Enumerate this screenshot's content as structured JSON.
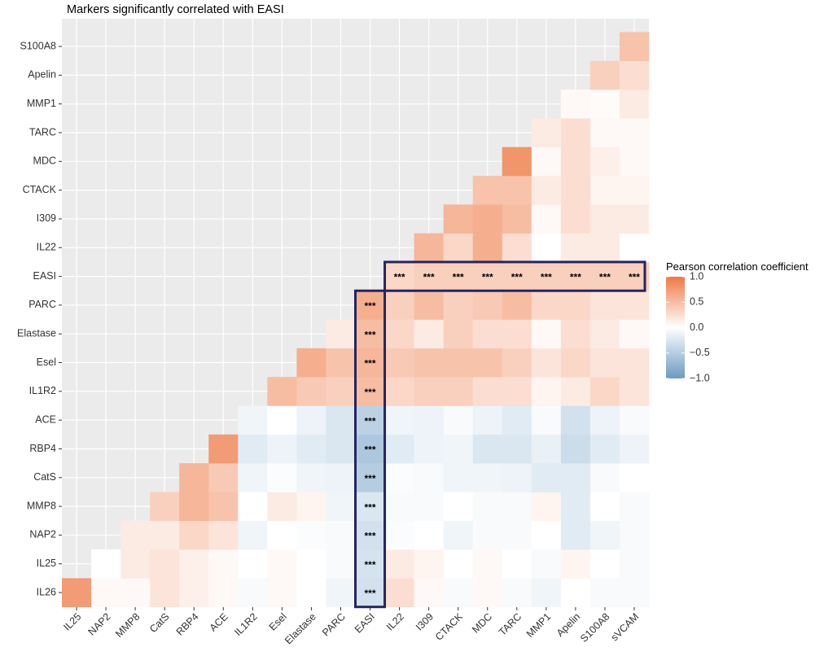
{
  "chart_data": {
    "type": "heatmap",
    "title": "Markers significantly correlated with EASI",
    "x_categories": [
      "IL25",
      "NAP2",
      "MMP8",
      "CatS",
      "RBP4",
      "ACE",
      "IL1R2",
      "Esel",
      "Elastase",
      "PARC",
      "EASI",
      "IL22",
      "I309",
      "CTACK",
      "MDC",
      "TARC",
      "MMP1",
      "Apelin",
      "S100A8",
      "sVCAM"
    ],
    "y_categories": [
      "IL26",
      "IL25",
      "NAP2",
      "MMP8",
      "CatS",
      "RBP4",
      "ACE",
      "IL1R2",
      "Esel",
      "Elastase",
      "PARC",
      "EASI",
      "IL22",
      "I309",
      "CTACK",
      "MDC",
      "TARC",
      "MMP1",
      "Apelin",
      "S100A8"
    ],
    "z": [
      [
        0.75,
        0.05,
        0.05,
        0.2,
        0.12,
        0.05,
        -0.05,
        0.05,
        0,
        -0.1,
        -0.3,
        0.25,
        0.05,
        -0.05,
        0.05,
        -0.05,
        -0.1,
        0,
        -0.05,
        -0.05
      ],
      [
        0,
        0.15,
        0.2,
        0.12,
        0.05,
        0,
        0.05,
        0,
        -0.05,
        -0.28,
        0.15,
        0.08,
        0,
        0.05,
        0,
        -0.05,
        0.08,
        0,
        -0.05
      ],
      [
        0.15,
        0.15,
        0.3,
        0.2,
        -0.1,
        0,
        -0.03,
        -0.05,
        -0.3,
        -0.03,
        0,
        -0.1,
        -0.05,
        -0.05,
        0,
        -0.2,
        -0.1,
        -0.05
      ],
      [
        0.35,
        0.55,
        0.45,
        0,
        0.15,
        0.08,
        -0.1,
        -0.25,
        -0.05,
        -0.05,
        0,
        -0.05,
        -0.05,
        0.08,
        -0.2,
        0,
        -0.05
      ],
      [
        0.55,
        0.4,
        -0.1,
        -0.03,
        -0.1,
        -0.12,
        -0.5,
        -0.03,
        -0.05,
        -0.1,
        -0.1,
        -0.12,
        -0.2,
        -0.2,
        -0.05,
        0
      ],
      [
        0.75,
        -0.2,
        -0.12,
        -0.2,
        -0.25,
        -0.55,
        -0.2,
        -0.12,
        -0.1,
        -0.25,
        -0.25,
        -0.15,
        -0.35,
        -0.2,
        -0.12
      ],
      [
        -0.1,
        0,
        -0.12,
        -0.25,
        -0.45,
        -0.1,
        -0.12,
        -0.05,
        -0.12,
        -0.2,
        -0.05,
        -0.3,
        -0.12,
        -0.05
      ],
      [
        0.5,
        0.4,
        0.35,
        0.5,
        0.3,
        0.35,
        0.35,
        0.25,
        0.25,
        0.08,
        0.15,
        0.3,
        0.2
      ],
      [
        0.6,
        0.45,
        0.55,
        0.4,
        0.45,
        0.45,
        0.45,
        0.35,
        0.2,
        0.3,
        0.2,
        0.2
      ],
      [
        0.15,
        0.5,
        0.3,
        0.15,
        0.35,
        0.25,
        0.25,
        0.05,
        0.25,
        0.15,
        0.05
      ],
      [
        0.6,
        0.35,
        0.5,
        0.35,
        0.4,
        0.5,
        0.3,
        0.3,
        0.2,
        0.2
      ],
      [
        0.3,
        0.35,
        0.35,
        0.35,
        0.35,
        0.35,
        0.35,
        0.35,
        0.35
      ],
      [
        0.55,
        0.3,
        0.6,
        0.25,
        0,
        0.15,
        0.15,
        0
      ],
      [
        0.55,
        0.6,
        0.5,
        0.05,
        0.25,
        0.15,
        0.15
      ],
      [
        0.45,
        0.45,
        0.15,
        0.25,
        0.08,
        0.08
      ],
      [
        0.8,
        0.05,
        0.25,
        0.12,
        0.05
      ],
      [
        0.15,
        0.25,
        0.05,
        0.05
      ],
      [
        0.05,
        0.03,
        0.15
      ],
      [
        0.35,
        0.25
      ],
      [
        0.45
      ]
    ],
    "annotations": [
      {
        "x": "EASI",
        "y": "IL26",
        "label": "***"
      },
      {
        "x": "EASI",
        "y": "IL25",
        "label": "***"
      },
      {
        "x": "EASI",
        "y": "NAP2",
        "label": "***"
      },
      {
        "x": "EASI",
        "y": "MMP8",
        "label": "***"
      },
      {
        "x": "EASI",
        "y": "CatS",
        "label": "***"
      },
      {
        "x": "EASI",
        "y": "RBP4",
        "label": "***"
      },
      {
        "x": "EASI",
        "y": "ACE",
        "label": "***"
      },
      {
        "x": "EASI",
        "y": "IL1R2",
        "label": "***"
      },
      {
        "x": "EASI",
        "y": "Esel",
        "label": "***"
      },
      {
        "x": "EASI",
        "y": "Elastase",
        "label": "***"
      },
      {
        "x": "EASI",
        "y": "PARC",
        "label": "***"
      },
      {
        "x": "IL22",
        "y": "EASI",
        "label": "***"
      },
      {
        "x": "I309",
        "y": "EASI",
        "label": "***"
      },
      {
        "x": "CTACK",
        "y": "EASI",
        "label": "***"
      },
      {
        "x": "MDC",
        "y": "EASI",
        "label": "***"
      },
      {
        "x": "TARC",
        "y": "EASI",
        "label": "***"
      },
      {
        "x": "MMP1",
        "y": "EASI",
        "label": "***"
      },
      {
        "x": "Apelin",
        "y": "EASI",
        "label": "***"
      },
      {
        "x": "S100A8",
        "y": "EASI",
        "label": "***"
      },
      {
        "x": "sVCAM",
        "y": "EASI",
        "label": "***"
      }
    ],
    "highlight": "EASI",
    "clim": [
      -1,
      1
    ],
    "colors": {
      "low": "#6a9bc3",
      "mid": "#ffffff",
      "high": "#ee7a45"
    },
    "colorbar_title": "Pearson correlation coefficient",
    "colorbar_ticks": [
      {
        "value": 1,
        "label": "1.0"
      },
      {
        "value": 0.5,
        "label": "0.5"
      },
      {
        "value": 0,
        "label": "0.0"
      },
      {
        "value": -0.5,
        "label": "−0.5"
      },
      {
        "value": -1,
        "label": "−1.0"
      }
    ]
  }
}
